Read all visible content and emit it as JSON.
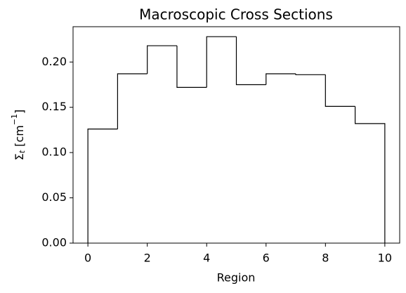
{
  "chart_data": {
    "type": "histogram",
    "title": "Macroscopic Cross Sections",
    "xlabel": "Region",
    "ylabel": [
      "Σ",
      "t",
      " [cm",
      "−1",
      "]"
    ],
    "bins": [
      0,
      1,
      2,
      3,
      4,
      5,
      6,
      7,
      8,
      9,
      10
    ],
    "values": [
      0.126,
      0.187,
      0.218,
      0.172,
      0.228,
      0.175,
      0.187,
      0.186,
      0.151,
      0.132
    ],
    "color": "#000000",
    "xlim": [
      -0.5,
      10.5
    ],
    "ylim": [
      0,
      0.239
    ],
    "xticks": [
      0,
      2,
      4,
      6,
      8,
      10
    ],
    "yticks": [
      {
        "value": 0,
        "label": "0.00"
      },
      {
        "value": 0.05,
        "label": "0.05"
      },
      {
        "value": 0.1,
        "label": "0.10"
      },
      {
        "value": 0.15,
        "label": "0.15"
      },
      {
        "value": 0.2,
        "label": "0.20"
      }
    ]
  }
}
